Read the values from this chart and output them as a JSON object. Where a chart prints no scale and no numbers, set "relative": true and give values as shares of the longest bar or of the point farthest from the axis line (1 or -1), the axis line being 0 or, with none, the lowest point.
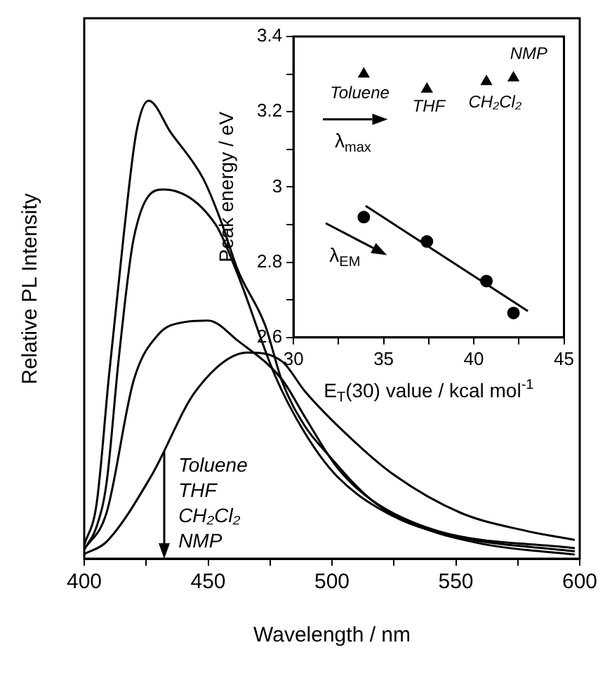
{
  "chart_data": [
    {
      "type": "line",
      "relative": true,
      "xlabel": "Wavelength / nm",
      "ylabel": "Relative PL Intensity",
      "xlim": [
        400,
        600
      ],
      "xticks": [
        400,
        {
          "value": 425,
          "label": null
        },
        450,
        {
          "value": 475,
          "label": null
        },
        500,
        {
          "value": 525,
          "label": null
        },
        550,
        {
          "value": 575,
          "label": null
        },
        600
      ],
      "grid": false,
      "legend": false,
      "marker": "none",
      "line_style": "solid",
      "annotations": [
        "Toluene",
        "THF",
        "CH₂Cl₂",
        "NMP"
      ],
      "series": [
        {
          "color": "#000000",
          "x": [
            400,
            405,
            410,
            416,
            421,
            426,
            435,
            448,
            455,
            462,
            473,
            480,
            489,
            498,
            516,
            534,
            561,
            598
          ],
          "values": [
            0.03,
            0.12,
            0.4,
            0.71,
            0.93,
            1.0,
            0.93,
            0.83,
            0.74,
            0.63,
            0.51,
            0.385,
            0.29,
            0.23,
            0.128,
            0.073,
            0.032,
            0.009
          ]
        },
        {
          "color": "#000000",
          "x": [
            400,
            405,
            409,
            414,
            420,
            432,
            453,
            462,
            477,
            489,
            502,
            525,
            552,
            598
          ],
          "values": [
            0.02,
            0.07,
            0.165,
            0.44,
            0.7,
            0.806,
            0.73,
            0.62,
            0.4,
            0.275,
            0.18,
            0.092,
            0.046,
            0.016
          ]
        },
        {
          "color": "#000000",
          "x": [
            400,
            409,
            420,
            430,
            441,
            450,
            462,
            480,
            489,
            502,
            516,
            543,
            598
          ],
          "values": [
            0.02,
            0.1,
            0.39,
            0.49,
            0.517,
            0.52,
            0.476,
            0.39,
            0.31,
            0.2,
            0.128,
            0.06,
            0.023
          ]
        },
        {
          "color": "#000000",
          "x": [
            400,
            409,
            427,
            445,
            466,
            480,
            489,
            507,
            525,
            552,
            579,
            598
          ],
          "values": [
            0.01,
            0.037,
            0.18,
            0.366,
            0.45,
            0.43,
            0.366,
            0.266,
            0.183,
            0.1,
            0.06,
            0.041
          ]
        }
      ]
    },
    {
      "type": "scatter",
      "xlabel": "E$_{T}$(30) value / kcal mol$^{-1}$",
      "ylabel": "Peak energy / eV",
      "xlim": [
        30,
        45
      ],
      "xticks": [
        30,
        {
          "value": 32.5,
          "label": null
        },
        35,
        {
          "value": 37.5,
          "label": null
        },
        40,
        {
          "value": 42.5,
          "label": null
        },
        45
      ],
      "ylim": [
        2.6,
        3.4
      ],
      "yticks": [
        2.6,
        {
          "value": 2.7,
          "label": null
        },
        2.8,
        {
          "value": 2.9,
          "label": null
        },
        3.0,
        {
          "value": 3.1,
          "label": null
        },
        3.2,
        {
          "value": 3.3,
          "label": null
        },
        3.4
      ],
      "grid": false,
      "legend": false,
      "annotations": [
        "Toluene",
        "THF",
        "CH₂Cl₂",
        "NMP",
        "λ$_{max}$",
        "λ$_{EM}$"
      ],
      "series": [
        {
          "color": "#000000",
          "marker": "triangle",
          "x": [
            33.9,
            37.4,
            40.7,
            42.2
          ],
          "values": [
            3.3,
            3.26,
            3.28,
            3.29
          ]
        },
        {
          "color": "#000000",
          "marker": "circle",
          "x": [
            33.9,
            37.4,
            40.7,
            42.2
          ],
          "values": [
            2.92,
            2.855,
            2.75,
            2.665
          ]
        },
        {
          "type": "line",
          "color": "#000000",
          "marker": "none",
          "line_style": "solid",
          "x": [
            34,
            43
          ],
          "values": [
            2.95,
            2.67
          ]
        }
      ]
    }
  ]
}
